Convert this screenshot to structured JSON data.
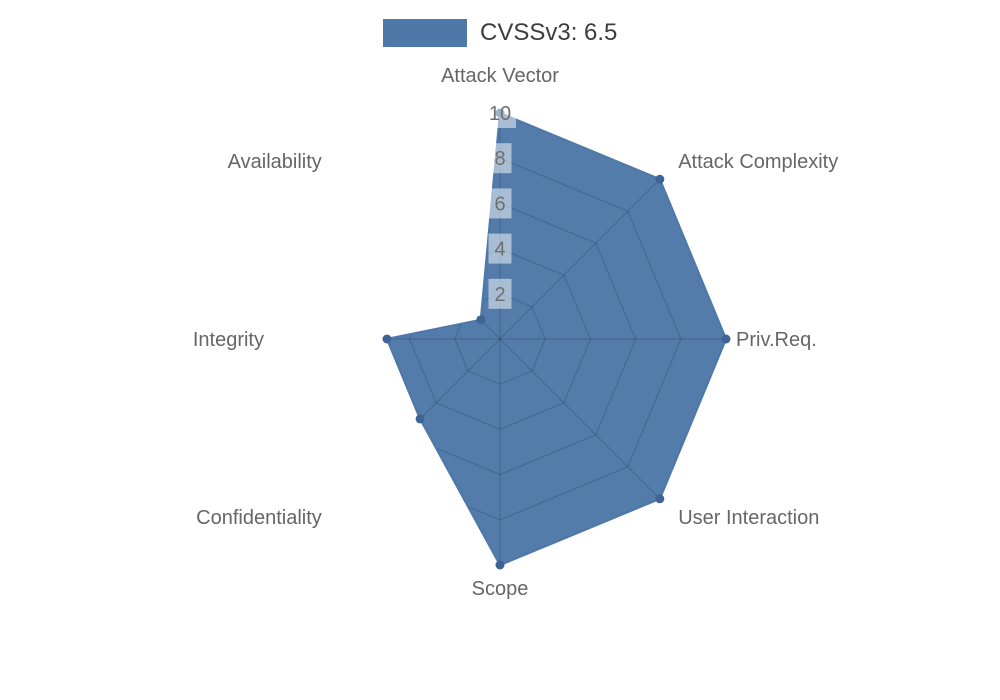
{
  "page": {
    "background": "#ffffff"
  },
  "legend": {
    "label": "CVSSv3: 6.5",
    "swatch_color": "#4d78a8"
  },
  "chart_data": {
    "type": "radar",
    "title": "",
    "categories": [
      "Attack Vector",
      "Attack Complexity",
      "Priv.Req.",
      "User Interaction",
      "Scope",
      "Confidentiality",
      "Integrity",
      "Availability"
    ],
    "series": [
      {
        "name": "CVSSv3: 6.5",
        "values": [
          10,
          10,
          10,
          10,
          10,
          5,
          5,
          1.2
        ]
      }
    ],
    "radial_ticks": [
      2,
      4,
      6,
      8,
      10
    ],
    "rlim": [
      0,
      10
    ],
    "grid": true,
    "grid_shape": "polygon",
    "legend_position": "top-center",
    "colors": {
      "fill": "#4d78a8",
      "fill_opacity": 0.97,
      "stroke": "#4d78a8",
      "marker": "#3d6494",
      "grid_line": "#000000",
      "grid_opacity": 0.14,
      "axis_label": "#666666",
      "tick_label": "#707070",
      "tick_box": "#ffffff",
      "tick_box_opacity": 0.5,
      "legend_text": "#3d3d3d"
    }
  }
}
